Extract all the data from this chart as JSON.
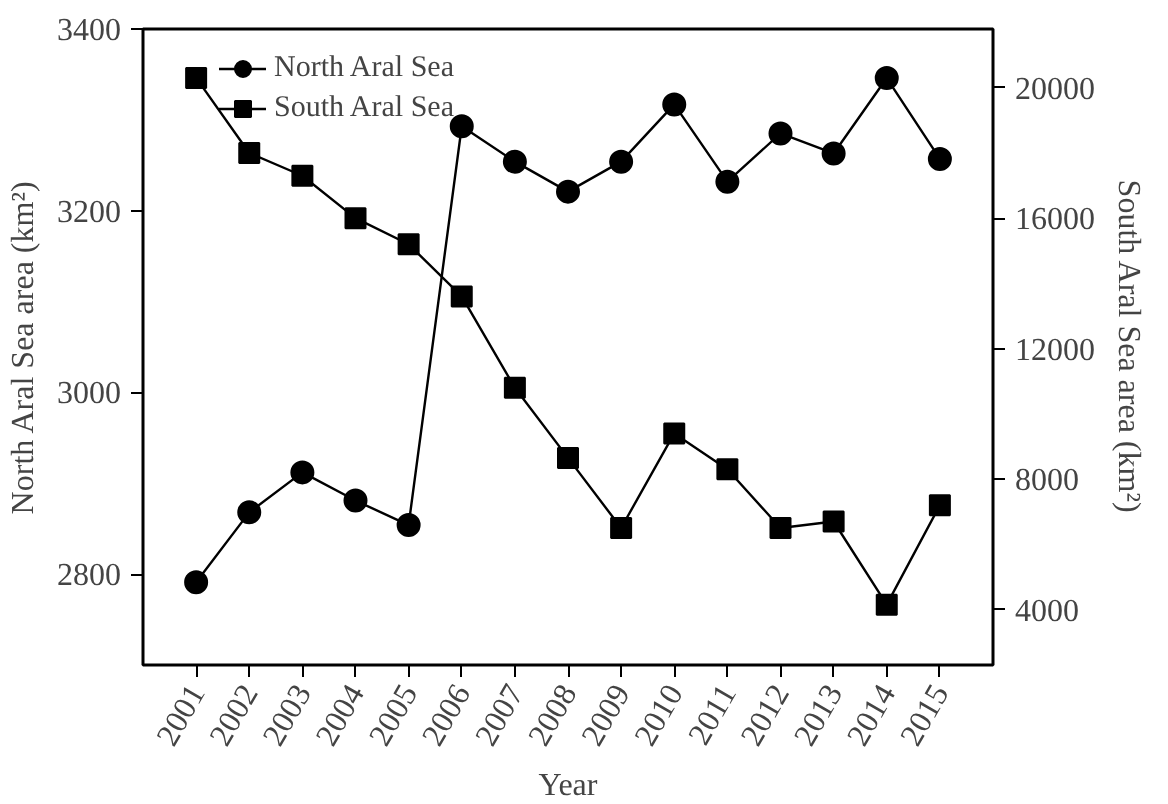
{
  "chart_data": {
    "type": "line",
    "categories": [
      "2001",
      "2002",
      "2003",
      "2004",
      "2005",
      "2006",
      "2007",
      "2008",
      "2009",
      "2010",
      "2011",
      "2012",
      "2013",
      "2014",
      "2015"
    ],
    "series": [
      {
        "name": "North Aral Sea",
        "color": "#000000",
        "marker": "circle",
        "values": [
          2791,
          2868,
          2912,
          2881,
          2854,
          3293,
          3254,
          3221,
          3254,
          3317,
          3232,
          3285,
          3263,
          3346,
          3257
        ]
      },
      {
        "name": "South Aral Sea",
        "color": "#000000",
        "marker": "square",
        "axis": "y2",
        "values": [
          20300,
          18000,
          17300,
          16000,
          15200,
          13600,
          10800,
          8650,
          6500,
          9400,
          8300,
          6500,
          6700,
          4150,
          7200
        ]
      }
    ],
    "xlabel": "Year",
    "ylabel": "North Aral Sea area (km²)",
    "y2label": "South Aral Sea area (km²)",
    "ylim": [
      2700,
      3400
    ],
    "yticks": [
      2800,
      3000,
      3200,
      3400
    ],
    "y2lim": [
      2300,
      21800
    ],
    "y2ticks": [
      4000,
      8000,
      12000,
      16000,
      20000
    ],
    "legend": "top left",
    "grid": false,
    "line_style": "solid"
  }
}
